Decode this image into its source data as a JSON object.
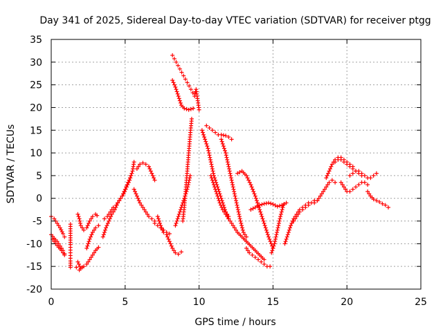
{
  "chart_data": {
    "type": "scatter",
    "title": "Day 341 of 2025, Sidereal Day-to-day VTEC variation (SDTVAR) for receiver ptgg",
    "xlabel": "GPS time / hours",
    "ylabel": "SDTVAR / TECUs",
    "xlim": [
      0,
      25
    ],
    "ylim": [
      -20,
      35
    ],
    "xticks": [
      0,
      5,
      10,
      15,
      20,
      25
    ],
    "yticks": [
      -20,
      -15,
      -10,
      -5,
      0,
      5,
      10,
      15,
      20,
      25,
      30,
      35
    ],
    "grid": true,
    "marker": "+",
    "color": "#ff0000",
    "series": [
      {
        "name": "arc-01",
        "x": [
          0.0,
          0.2,
          0.4,
          0.6,
          0.8,
          0.9
        ],
        "y": [
          -4,
          -4.5,
          -5.5,
          -6.5,
          -7.8,
          -8.5
        ]
      },
      {
        "name": "arc-02",
        "x": [
          0.0,
          0.2,
          0.4,
          0.6,
          0.8,
          0.9
        ],
        "y": [
          -8,
          -8.8,
          -9.5,
          -10.5,
          -11.5,
          -12.2
        ]
      },
      {
        "name": "arc-03",
        "x": [
          0.1,
          0.3,
          0.5,
          0.7,
          0.9
        ],
        "y": [
          -9,
          -10,
          -10.8,
          -11.5,
          -12.5
        ]
      },
      {
        "name": "arc-04",
        "x": [
          1.3,
          1.3,
          1.3,
          1.3,
          1.3
        ],
        "y": [
          -5.7,
          -10.2,
          -12,
          -13.8,
          -15.2
        ]
      },
      {
        "name": "arc-05",
        "x": [
          1.8,
          1.9,
          2.0,
          2.2,
          2.4,
          2.6,
          2.8,
          3.0,
          3.1
        ],
        "y": [
          -3.5,
          -4.5,
          -6,
          -7,
          -6.5,
          -5,
          -4,
          -3.5,
          -3.8
        ]
      },
      {
        "name": "arc-06",
        "x": [
          1.8,
          2.0,
          2.2,
          2.4,
          2.6,
          2.8,
          3.0,
          3.2
        ],
        "y": [
          -14,
          -15.5,
          -15,
          -14.5,
          -13.5,
          -12.5,
          -11.5,
          -10.8
        ]
      },
      {
        "name": "arc-07",
        "x": [
          2.4,
          2.6,
          2.8,
          3.0,
          3.2
        ],
        "y": [
          -11,
          -9,
          -7.5,
          -6.5,
          -6
        ]
      },
      {
        "name": "arc-08",
        "x": [
          3.5,
          3.7,
          3.9,
          4.1,
          4.3,
          4.5,
          4.7,
          4.9,
          5.1,
          5.3,
          5.5,
          5.6
        ],
        "y": [
          -8.5,
          -6.5,
          -5,
          -3.5,
          -2.5,
          -1,
          0,
          1,
          2.5,
          4,
          6,
          8
        ]
      },
      {
        "name": "arc-09",
        "x": [
          3.6,
          3.8,
          4.0,
          4.2,
          4.4,
          4.6,
          4.8,
          5.0,
          5.2,
          5.4
        ],
        "y": [
          -4.5,
          -4,
          -3,
          -2,
          -1.5,
          -0.5,
          0.5,
          2,
          3.5,
          5
        ]
      },
      {
        "name": "arc-10",
        "x": [
          5.6,
          5.8,
          6.0,
          6.2,
          6.4,
          6.6,
          6.8,
          7.0
        ],
        "y": [
          2,
          0.5,
          -1,
          -2,
          -3,
          -4,
          -4.5,
          -5
        ]
      },
      {
        "name": "arc-11",
        "x": [
          5.8,
          6.0,
          6.2,
          6.4,
          6.6,
          6.8,
          7.0
        ],
        "y": [
          6.5,
          7.5,
          7.8,
          7.5,
          7,
          5.5,
          4
        ]
      },
      {
        "name": "arc-12",
        "x": [
          7.2,
          7.4,
          7.6,
          7.8,
          8.0,
          8.2,
          8.4,
          8.6,
          8.8
        ],
        "y": [
          -4,
          -6,
          -7.5,
          -8,
          -9.5,
          -11,
          -12,
          -12.3,
          -11.8
        ]
      },
      {
        "name": "arc-13",
        "x": [
          8.4,
          8.6,
          8.8,
          9.0,
          9.2,
          9.4
        ],
        "y": [
          -6,
          -4,
          -2,
          0,
          2,
          5
        ]
      },
      {
        "name": "arc-14",
        "x": [
          8.9,
          9.0,
          9.1,
          9.2,
          9.3,
          9.4,
          9.5
        ],
        "y": [
          -5,
          -2,
          2,
          6,
          10,
          14,
          17.5
        ]
      },
      {
        "name": "arc-15",
        "x": [
          8.2,
          8.4,
          8.6,
          8.8,
          9.0,
          9.3,
          9.6
        ],
        "y": [
          26,
          24.5,
          22.5,
          20.5,
          19.8,
          19.5,
          19.8
        ]
      },
      {
        "name": "arc-16",
        "x": [
          8.2,
          9.7,
          9.8,
          10.0
        ],
        "y": [
          31.5,
          22.5,
          24,
          19.5
        ]
      },
      {
        "name": "arc-17",
        "x": [
          10.2,
          10.4,
          10.6,
          10.8,
          11.0,
          11.2,
          11.4,
          11.6,
          11.8,
          12.0
        ],
        "y": [
          15,
          13,
          11,
          8,
          5,
          3,
          1,
          -1,
          -3,
          -4
        ]
      },
      {
        "name": "arc-18",
        "x": [
          10.5,
          10.7,
          10.9,
          11.1,
          11.3,
          11.5,
          11.8,
          12.0,
          12.2
        ],
        "y": [
          16,
          15.5,
          15,
          14.5,
          14,
          14,
          13.8,
          13.5,
          13
        ]
      },
      {
        "name": "arc-19",
        "x": [
          10.8,
          11.0,
          11.2,
          11.4,
          11.6,
          11.8,
          12.0
        ],
        "y": [
          5,
          3,
          1,
          -1,
          -2.5,
          -3.5,
          -4.5
        ]
      },
      {
        "name": "arc-20",
        "x": [
          11.5,
          11.8,
          12.0,
          12.2,
          12.4,
          12.6,
          12.8,
          13.0,
          13.2
        ],
        "y": [
          13,
          10,
          7,
          4,
          1,
          -2,
          -5,
          -7.5,
          -8.5
        ]
      },
      {
        "name": "arc-21",
        "x": [
          11.8,
          12.0,
          12.3,
          12.6,
          12.9,
          13.2,
          13.5,
          13.8,
          14.1,
          14.4
        ],
        "y": [
          -3,
          -4.5,
          -6,
          -7.5,
          -8.5,
          -9.5,
          -10.5,
          -11.5,
          -12.5,
          -13.5
        ]
      },
      {
        "name": "arc-22",
        "x": [
          12.6,
          12.9,
          13.2,
          13.5,
          13.8,
          14.1,
          14.4,
          14.7,
          15.0
        ],
        "y": [
          5.5,
          6,
          5,
          3,
          0.5,
          -2.5,
          -5.5,
          -8.5,
          -11
        ]
      },
      {
        "name": "arc-23",
        "x": [
          13.2,
          13.4,
          13.6,
          13.8,
          14.0,
          14.2,
          14.4,
          14.6,
          14.8
        ],
        "y": [
          -11,
          -12,
          -12.5,
          -13,
          -13.5,
          -14,
          -14.5,
          -15,
          -15
        ]
      },
      {
        "name": "arc-24",
        "x": [
          13.5,
          13.8,
          14.1,
          14.4,
          14.7,
          15.0,
          15.3,
          15.6,
          15.9
        ],
        "y": [
          -2.5,
          -2,
          -1.5,
          -1.2,
          -1,
          -1.3,
          -1.8,
          -1.5,
          -1
        ]
      },
      {
        "name": "arc-25",
        "x": [
          14.9,
          15.1,
          15.3,
          15.5,
          15.7
        ],
        "y": [
          -12,
          -10,
          -7,
          -4,
          -1.5
        ]
      },
      {
        "name": "arc-26",
        "x": [
          15.8,
          16.0,
          16.2,
          16.4,
          16.6,
          16.8,
          17.0,
          17.2,
          17.4
        ],
        "y": [
          -10,
          -8,
          -6,
          -4.5,
          -3.5,
          -2.5,
          -2,
          -1.5,
          -1
        ]
      },
      {
        "name": "arc-27",
        "x": [
          16.4,
          16.6,
          16.8,
          17.0,
          17.2,
          17.4,
          17.6,
          17.8,
          18.0
        ],
        "y": [
          -5,
          -4,
          -3,
          -2.5,
          -2,
          -1.5,
          -1,
          -0.5,
          -0.5
        ]
      },
      {
        "name": "arc-28",
        "x": [
          17.8,
          18.0,
          18.2,
          18.4,
          18.6,
          18.8,
          19.0,
          19.2
        ],
        "y": [
          -1,
          -0.5,
          0.5,
          1.5,
          2.5,
          3.5,
          4,
          3.5
        ]
      },
      {
        "name": "arc-29",
        "x": [
          18.6,
          18.8,
          19.0,
          19.2,
          19.4,
          19.6,
          19.8,
          20.0,
          20.2,
          20.4
        ],
        "y": [
          4.5,
          6,
          7.5,
          8.5,
          9,
          9,
          8.5,
          8,
          7.5,
          7
        ]
      },
      {
        "name": "arc-30",
        "x": [
          19.2,
          19.4,
          19.6,
          19.8,
          20.0,
          20.2,
          20.4,
          20.6,
          20.8,
          21.0
        ],
        "y": [
          8,
          8.5,
          8.5,
          8,
          7.5,
          7,
          6.5,
          6,
          5.5,
          5
        ]
      },
      {
        "name": "arc-31",
        "x": [
          19.6,
          19.8,
          20.0,
          20.2,
          20.4,
          20.6,
          20.8,
          21.0,
          21.2,
          21.4
        ],
        "y": [
          3.5,
          2.5,
          1.5,
          1.5,
          2,
          2.5,
          3,
          3.5,
          3.5,
          3
        ]
      },
      {
        "name": "arc-32",
        "x": [
          20.2,
          20.4,
          20.6,
          20.8,
          21.0,
          21.2,
          21.4,
          21.6,
          21.8,
          22.0
        ],
        "y": [
          5,
          5.5,
          6,
          6,
          5.5,
          5,
          4.5,
          4.5,
          5,
          5.5
        ]
      },
      {
        "name": "arc-33",
        "x": [
          21.4,
          21.6,
          21.8,
          22.0,
          22.2,
          22.4,
          22.6,
          22.8
        ],
        "y": [
          1.5,
          0.5,
          -0.2,
          -0.5,
          -0.8,
          -1.2,
          -1.5,
          -2
        ]
      },
      {
        "name": "arc-34",
        "x": [
          1.7,
          1.9,
          2.1
        ],
        "y": [
          -15.2,
          -15.8,
          -15.2
        ]
      },
      {
        "name": "arc-35",
        "x": [
          7.0,
          7.2,
          7.4,
          7.6,
          7.8,
          8.0
        ],
        "y": [
          -5.5,
          -6,
          -6.5,
          -7,
          -7.5,
          -7.8
        ]
      }
    ]
  }
}
